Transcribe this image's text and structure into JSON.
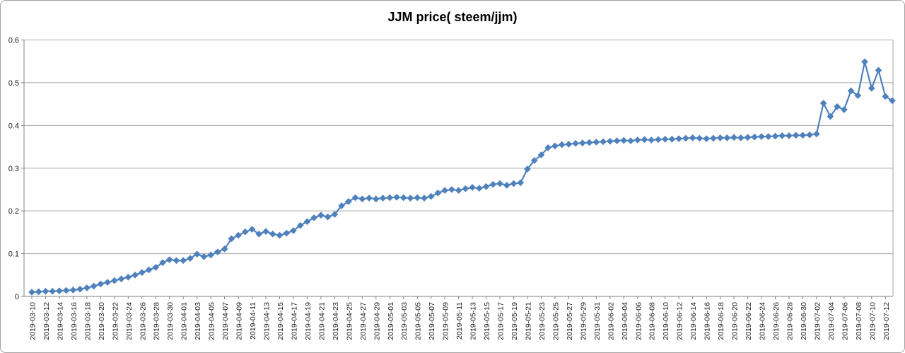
{
  "chart": {
    "title": "JJM price( steem/jjm)",
    "colors": {
      "series": "#4f81bd",
      "gridline": "#a6a6a6",
      "axis": "#808080",
      "plot_border": "#a6a6a6",
      "frame_border": "#a3a3a3",
      "text": "#1a1a1a",
      "background": "#ffffff"
    }
  },
  "chart_data": {
    "type": "line",
    "title": "JJM price( steem/jjm)",
    "xlabel": "",
    "ylabel": "",
    "ylim": [
      0,
      0.6
    ],
    "ytick_step": 0.1,
    "xtick_every": 2,
    "grid": true,
    "legend": false,
    "marker": "diamond",
    "x": [
      "2019-03-10",
      "2019-03-11",
      "2019-03-12",
      "2019-03-13",
      "2019-03-14",
      "2019-03-15",
      "2019-03-16",
      "2019-03-17",
      "2019-03-18",
      "2019-03-19",
      "2019-03-20",
      "2019-03-21",
      "2019-03-22",
      "2019-03-23",
      "2019-03-24",
      "2019-03-25",
      "2019-03-26",
      "2019-03-27",
      "2019-03-28",
      "2019-03-29",
      "2019-03-30",
      "2019-03-31",
      "2019-04-01",
      "2019-04-02",
      "2019-04-03",
      "2019-04-04",
      "2019-04-05",
      "2019-04-06",
      "2019-04-07",
      "2019-04-08",
      "2019-04-09",
      "2019-04-10",
      "2019-04-11",
      "2019-04-12",
      "2019-04-13",
      "2019-04-14",
      "2019-04-15",
      "2019-04-16",
      "2019-04-17",
      "2019-04-18",
      "2019-04-19",
      "2019-04-20",
      "2019-04-21",
      "2019-04-22",
      "2019-04-23",
      "2019-04-24",
      "2019-04-25",
      "2019-04-26",
      "2019-04-27",
      "2019-04-28",
      "2019-04-29",
      "2019-04-30",
      "2019-05-01",
      "2019-05-02",
      "2019-05-03",
      "2019-05-04",
      "2019-05-05",
      "2019-05-06",
      "2019-05-07",
      "2019-05-08",
      "2019-05-09",
      "2019-05-10",
      "2019-05-11",
      "2019-05-12",
      "2019-05-13",
      "2019-05-14",
      "2019-05-15",
      "2019-05-16",
      "2019-05-17",
      "2019-05-18",
      "2019-05-19",
      "2019-05-20",
      "2019-05-21",
      "2019-05-22",
      "2019-05-23",
      "2019-05-24",
      "2019-05-25",
      "2019-05-26",
      "2019-05-27",
      "2019-05-28",
      "2019-05-29",
      "2019-05-30",
      "2019-05-31",
      "2019-06-01",
      "2019-06-02",
      "2019-06-03",
      "2019-06-04",
      "2019-06-05",
      "2019-06-06",
      "2019-06-07",
      "2019-06-08",
      "2019-06-09",
      "2019-06-10",
      "2019-06-11",
      "2019-06-12",
      "2019-06-13",
      "2019-06-14",
      "2019-06-15",
      "2019-06-16",
      "2019-06-17",
      "2019-06-18",
      "2019-06-19",
      "2019-06-20",
      "2019-06-21",
      "2019-06-22",
      "2019-06-23",
      "2019-06-24",
      "2019-06-25",
      "2019-06-26",
      "2019-06-27",
      "2019-06-28",
      "2019-06-29",
      "2019-06-30",
      "2019-07-01",
      "2019-07-02",
      "2019-07-03",
      "2019-07-04",
      "2019-07-05",
      "2019-07-06",
      "2019-07-07",
      "2019-07-08",
      "2019-07-09",
      "2019-07-10",
      "2019-07-11",
      "2019-07-12",
      "2019-07-13"
    ],
    "values": [
      0.01,
      0.011,
      0.012,
      0.012,
      0.013,
      0.014,
      0.015,
      0.017,
      0.02,
      0.024,
      0.029,
      0.033,
      0.037,
      0.041,
      0.045,
      0.05,
      0.056,
      0.062,
      0.068,
      0.079,
      0.086,
      0.084,
      0.084,
      0.089,
      0.099,
      0.093,
      0.097,
      0.104,
      0.111,
      0.135,
      0.143,
      0.151,
      0.157,
      0.146,
      0.152,
      0.146,
      0.143,
      0.148,
      0.154,
      0.166,
      0.175,
      0.184,
      0.19,
      0.186,
      0.192,
      0.212,
      0.222,
      0.231,
      0.228,
      0.23,
      0.228,
      0.23,
      0.231,
      0.232,
      0.231,
      0.23,
      0.231,
      0.23,
      0.234,
      0.242,
      0.248,
      0.25,
      0.248,
      0.252,
      0.255,
      0.253,
      0.257,
      0.262,
      0.264,
      0.26,
      0.264,
      0.266,
      0.298,
      0.318,
      0.331,
      0.348,
      0.352,
      0.355,
      0.356,
      0.358,
      0.359,
      0.36,
      0.361,
      0.362,
      0.363,
      0.364,
      0.365,
      0.364,
      0.366,
      0.367,
      0.366,
      0.367,
      0.368,
      0.368,
      0.369,
      0.37,
      0.371,
      0.37,
      0.369,
      0.37,
      0.371,
      0.371,
      0.372,
      0.371,
      0.372,
      0.373,
      0.374,
      0.374,
      0.375,
      0.376,
      0.376,
      0.377,
      0.377,
      0.378,
      0.38,
      0.452,
      0.421,
      0.444,
      0.437,
      0.481,
      0.47,
      0.549,
      0.487,
      0.529,
      0.468,
      0.458
    ]
  }
}
